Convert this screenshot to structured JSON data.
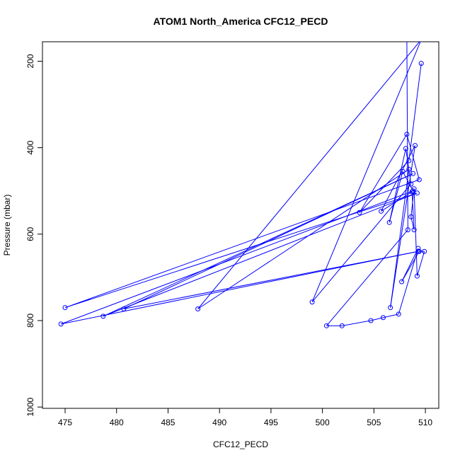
{
  "chart_data": {
    "type": "line",
    "title": "ATOM1 North_America CFC12_PECD",
    "xlabel": "CFC12_PECD",
    "ylabel": "Pressure (mbar)",
    "xlim": [
      472.8,
      511.3
    ],
    "ylim": [
      1003,
      155
    ],
    "y_reversed": true,
    "x_ticks": [
      475,
      480,
      485,
      490,
      495,
      500,
      505,
      510
    ],
    "y_ticks": [
      200,
      400,
      600,
      800,
      1000
    ],
    "series_color": "#0000ff",
    "markers": "open-circle",
    "grid": false,
    "legend": "none",
    "x": [
      509.6,
      508.4,
      503.6,
      508.2,
      509.4,
      475.0,
      509.2,
      478.7,
      508.8,
      480.7,
      509.3,
      474.6,
      508.8,
      507.8,
      506.5,
      508.1,
      508.6,
      499.0,
      509.6,
      487.9,
      508.4,
      506.6,
      509.0,
      505.7,
      508.7,
      508.9,
      508.6,
      508.9,
      509.2,
      509.9,
      509.4,
      507.7,
      509.3,
      507.4,
      505.9,
      504.7,
      501.9,
      500.4,
      508.3,
      508.2
    ],
    "y": [
      205,
      430,
      550,
      369,
      474,
      770,
      505,
      790,
      460,
      773,
      640,
      808,
      500,
      455,
      573,
      402,
      484,
      757,
      150,
      773,
      450,
      770,
      395,
      547,
      502,
      590,
      560,
      495,
      697,
      640,
      640,
      710,
      633,
      785,
      793,
      800,
      812,
      812,
      590,
      150
    ]
  }
}
